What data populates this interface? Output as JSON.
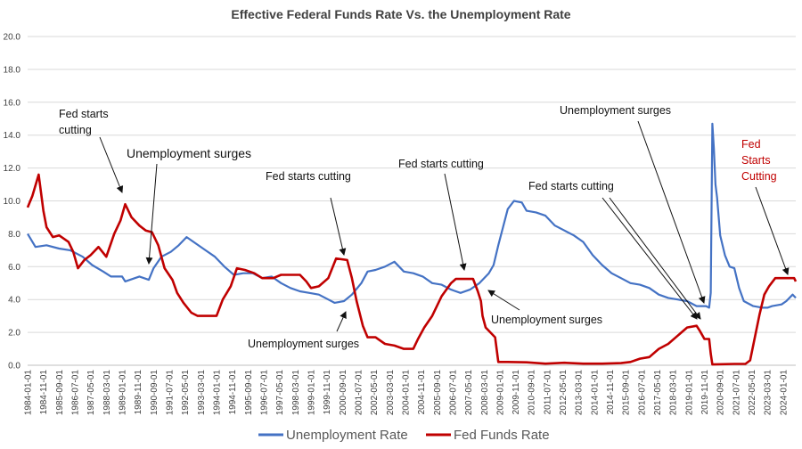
{
  "chart_data": {
    "type": "line",
    "title": "Effective Federal Funds Rate Vs. the Unemployment Rate",
    "ylim": [
      0,
      20
    ],
    "yticks": [
      "0.0",
      "2.0",
      "4.0",
      "6.0",
      "8.0",
      "10.0",
      "12.0",
      "14.0",
      "16.0",
      "18.0",
      "20.0"
    ],
    "xlim": [
      "1984-01-01",
      "2024-09-01"
    ],
    "xticks": [
      "1984-01-01",
      "1984-11-01",
      "1985-09-01",
      "1986-07-01",
      "1987-05-01",
      "1988-03-01",
      "1989-01-01",
      "1989-11-01",
      "1990-09-01",
      "1991-07-01",
      "1992-05-01",
      "1993-03-01",
      "1994-01-01",
      "1994-11-01",
      "1995-09-01",
      "1996-07-01",
      "1997-05-01",
      "1998-03-01",
      "1999-01-01",
      "1999-11-01",
      "2000-09-01",
      "2001-07-01",
      "2002-05-01",
      "2003-03-01",
      "2004-01-01",
      "2004-11-01",
      "2005-09-01",
      "2006-07-01",
      "2007-05-01",
      "2008-03-01",
      "2009-01-01",
      "2009-11-01",
      "2010-09-01",
      "2011-07-01",
      "2012-05-01",
      "2013-03-01",
      "2014-01-01",
      "2014-11-01",
      "2015-09-01",
      "2016-07-01",
      "2017-05-01",
      "2018-03-01",
      "2019-01-01",
      "2019-11-01",
      "2020-09-01",
      "2021-07-01",
      "2022-05-01",
      "2023-03-01",
      "2024-01-01"
    ],
    "grid": "horizontal",
    "legend_position": "bottom",
    "series": [
      {
        "name": "Unemployment Rate",
        "color": "#4472c4",
        "points": [
          [
            "1984-01-01",
            8.0
          ],
          [
            "1984-06-01",
            7.2
          ],
          [
            "1985-01-01",
            7.3
          ],
          [
            "1985-09-01",
            7.1
          ],
          [
            "1986-04-01",
            7.0
          ],
          [
            "1986-12-01",
            6.6
          ],
          [
            "1987-06-01",
            6.1
          ],
          [
            "1988-01-01",
            5.7
          ],
          [
            "1988-06-01",
            5.4
          ],
          [
            "1989-01-01",
            5.4
          ],
          [
            "1989-03-01",
            5.1
          ],
          [
            "1989-12-01",
            5.4
          ],
          [
            "1990-06-01",
            5.2
          ],
          [
            "1990-09-01",
            5.9
          ],
          [
            "1991-02-01",
            6.6
          ],
          [
            "1991-08-01",
            6.9
          ],
          [
            "1992-01-01",
            7.3
          ],
          [
            "1992-06-01",
            7.8
          ],
          [
            "1992-12-01",
            7.4
          ],
          [
            "1993-06-01",
            7.0
          ],
          [
            "1993-12-01",
            6.6
          ],
          [
            "1994-06-01",
            6.0
          ],
          [
            "1994-12-01",
            5.5
          ],
          [
            "1995-06-01",
            5.6
          ],
          [
            "1995-12-01",
            5.6
          ],
          [
            "1996-06-01",
            5.3
          ],
          [
            "1996-12-01",
            5.4
          ],
          [
            "1997-06-01",
            5.0
          ],
          [
            "1997-12-01",
            4.7
          ],
          [
            "1998-06-01",
            4.5
          ],
          [
            "1998-12-01",
            4.4
          ],
          [
            "1999-06-01",
            4.3
          ],
          [
            "1999-12-01",
            4.0
          ],
          [
            "2000-04-01",
            3.8
          ],
          [
            "2000-10-01",
            3.9
          ],
          [
            "2001-03-01",
            4.3
          ],
          [
            "2001-09-01",
            5.0
          ],
          [
            "2002-01-01",
            5.7
          ],
          [
            "2002-06-01",
            5.8
          ],
          [
            "2002-12-01",
            6.0
          ],
          [
            "2003-06-01",
            6.3
          ],
          [
            "2003-12-01",
            5.7
          ],
          [
            "2004-06-01",
            5.6
          ],
          [
            "2004-12-01",
            5.4
          ],
          [
            "2005-06-01",
            5.0
          ],
          [
            "2005-12-01",
            4.9
          ],
          [
            "2006-06-01",
            4.6
          ],
          [
            "2006-12-01",
            4.4
          ],
          [
            "2007-06-01",
            4.6
          ],
          [
            "2007-12-01",
            5.0
          ],
          [
            "2008-06-01",
            5.6
          ],
          [
            "2008-09-01",
            6.1
          ],
          [
            "2008-12-01",
            7.3
          ],
          [
            "2009-06-01",
            9.5
          ],
          [
            "2009-10-01",
            10.0
          ],
          [
            "2010-03-01",
            9.9
          ],
          [
            "2010-06-01",
            9.4
          ],
          [
            "2010-12-01",
            9.3
          ],
          [
            "2011-06-01",
            9.1
          ],
          [
            "2011-12-01",
            8.5
          ],
          [
            "2012-06-01",
            8.2
          ],
          [
            "2012-12-01",
            7.9
          ],
          [
            "2013-06-01",
            7.5
          ],
          [
            "2013-12-01",
            6.7
          ],
          [
            "2014-06-01",
            6.1
          ],
          [
            "2014-12-01",
            5.6
          ],
          [
            "2015-06-01",
            5.3
          ],
          [
            "2015-12-01",
            5.0
          ],
          [
            "2016-06-01",
            4.9
          ],
          [
            "2016-12-01",
            4.7
          ],
          [
            "2017-06-01",
            4.3
          ],
          [
            "2017-12-01",
            4.1
          ],
          [
            "2018-06-01",
            4.0
          ],
          [
            "2018-12-01",
            3.9
          ],
          [
            "2019-06-01",
            3.6
          ],
          [
            "2019-12-01",
            3.6
          ],
          [
            "2020-02-01",
            3.5
          ],
          [
            "2020-03-01",
            4.4
          ],
          [
            "2020-04-01",
            14.7
          ],
          [
            "2020-05-01",
            13.2
          ],
          [
            "2020-06-01",
            11.0
          ],
          [
            "2020-07-01",
            10.2
          ],
          [
            "2020-09-01",
            7.9
          ],
          [
            "2020-12-01",
            6.7
          ],
          [
            "2021-03-01",
            6.0
          ],
          [
            "2021-06-01",
            5.9
          ],
          [
            "2021-09-01",
            4.7
          ],
          [
            "2021-12-01",
            3.9
          ],
          [
            "2022-06-01",
            3.6
          ],
          [
            "2022-12-01",
            3.5
          ],
          [
            "2023-03-01",
            3.5
          ],
          [
            "2023-06-01",
            3.6
          ],
          [
            "2023-12-01",
            3.7
          ],
          [
            "2024-03-01",
            3.9
          ],
          [
            "2024-07-01",
            4.3
          ],
          [
            "2024-09-01",
            4.1
          ]
        ]
      },
      {
        "name": "Fed Funds Rate",
        "color": "#c00000",
        "points": [
          [
            "1984-01-01",
            9.6
          ],
          [
            "1984-04-01",
            10.3
          ],
          [
            "1984-08-01",
            11.6
          ],
          [
            "1984-11-01",
            9.4
          ],
          [
            "1985-01-01",
            8.4
          ],
          [
            "1985-05-01",
            7.8
          ],
          [
            "1985-09-01",
            7.9
          ],
          [
            "1986-03-01",
            7.5
          ],
          [
            "1986-06-01",
            6.9
          ],
          [
            "1986-09-01",
            5.9
          ],
          [
            "1987-01-01",
            6.4
          ],
          [
            "1987-05-01",
            6.7
          ],
          [
            "1987-10-01",
            7.2
          ],
          [
            "1988-03-01",
            6.6
          ],
          [
            "1988-08-01",
            8.0
          ],
          [
            "1988-12-01",
            8.8
          ],
          [
            "1989-03-01",
            9.8
          ],
          [
            "1989-07-01",
            9.0
          ],
          [
            "1989-12-01",
            8.5
          ],
          [
            "1990-04-01",
            8.2
          ],
          [
            "1990-08-01",
            8.1
          ],
          [
            "1990-12-01",
            7.3
          ],
          [
            "1991-04-01",
            5.9
          ],
          [
            "1991-09-01",
            5.2
          ],
          [
            "1991-12-01",
            4.4
          ],
          [
            "1992-04-01",
            3.8
          ],
          [
            "1992-09-01",
            3.2
          ],
          [
            "1993-01-01",
            3.0
          ],
          [
            "1993-08-01",
            3.0
          ],
          [
            "1994-01-01",
            3.0
          ],
          [
            "1994-05-01",
            4.0
          ],
          [
            "1994-10-01",
            4.8
          ],
          [
            "1995-02-01",
            5.9
          ],
          [
            "1995-07-01",
            5.8
          ],
          [
            "1996-01-01",
            5.6
          ],
          [
            "1996-06-01",
            5.3
          ],
          [
            "1997-01-01",
            5.3
          ],
          [
            "1997-06-01",
            5.5
          ],
          [
            "1998-01-01",
            5.5
          ],
          [
            "1998-06-01",
            5.5
          ],
          [
            "1998-10-01",
            5.1
          ],
          [
            "1999-01-01",
            4.7
          ],
          [
            "1999-06-01",
            4.8
          ],
          [
            "1999-12-01",
            5.3
          ],
          [
            "2000-05-01",
            6.5
          ],
          [
            "2000-12-01",
            6.4
          ],
          [
            "2001-03-01",
            5.3
          ],
          [
            "2001-06-01",
            3.9
          ],
          [
            "2001-10-01",
            2.4
          ],
          [
            "2002-01-01",
            1.7
          ],
          [
            "2002-06-01",
            1.7
          ],
          [
            "2002-12-01",
            1.3
          ],
          [
            "2003-06-01",
            1.2
          ],
          [
            "2003-12-01",
            1.0
          ],
          [
            "2004-06-01",
            1.0
          ],
          [
            "2004-09-01",
            1.6
          ],
          [
            "2005-01-01",
            2.3
          ],
          [
            "2005-06-01",
            3.0
          ],
          [
            "2005-12-01",
            4.2
          ],
          [
            "2006-06-01",
            5.0
          ],
          [
            "2006-09-01",
            5.25
          ],
          [
            "2007-08-01",
            5.25
          ],
          [
            "2007-11-01",
            4.5
          ],
          [
            "2008-01-01",
            3.9
          ],
          [
            "2008-02-01",
            3.0
          ],
          [
            "2008-04-01",
            2.3
          ],
          [
            "2008-10-01",
            1.7
          ],
          [
            "2008-12-01",
            0.2
          ],
          [
            "2009-06-01",
            0.2
          ],
          [
            "2010-06-01",
            0.18
          ],
          [
            "2011-06-01",
            0.1
          ],
          [
            "2012-06-01",
            0.15
          ],
          [
            "2013-06-01",
            0.1
          ],
          [
            "2014-06-01",
            0.1
          ],
          [
            "2015-06-01",
            0.13
          ],
          [
            "2015-12-01",
            0.2
          ],
          [
            "2016-06-01",
            0.4
          ],
          [
            "2016-12-01",
            0.5
          ],
          [
            "2017-06-01",
            1.0
          ],
          [
            "2017-12-01",
            1.3
          ],
          [
            "2018-06-01",
            1.8
          ],
          [
            "2018-12-01",
            2.3
          ],
          [
            "2019-06-01",
            2.4
          ],
          [
            "2019-08-01",
            2.1
          ],
          [
            "2019-11-01",
            1.6
          ],
          [
            "2020-02-01",
            1.6
          ],
          [
            "2020-03-01",
            0.7
          ],
          [
            "2020-04-01",
            0.05
          ],
          [
            "2021-06-01",
            0.08
          ],
          [
            "2022-01-01",
            0.08
          ],
          [
            "2022-04-01",
            0.3
          ],
          [
            "2022-07-01",
            1.7
          ],
          [
            "2022-10-01",
            3.1
          ],
          [
            "2023-01-01",
            4.3
          ],
          [
            "2023-04-01",
            4.8
          ],
          [
            "2023-08-01",
            5.3
          ],
          [
            "2024-08-01",
            5.3
          ],
          [
            "2024-09-01",
            5.1
          ]
        ]
      }
    ],
    "annotations": {
      "fed_cut_1": [
        "Fed starts",
        "cutting"
      ],
      "unemp_surge_1": "Unemployment surges",
      "fed_cut_2": "Fed starts cutting",
      "unemp_surge_2": "Unemployment surges",
      "fed_cut_3": "Fed starts cutting",
      "unemp_surge_3": "Unemployment surges",
      "fed_cut_4": "Fed starts cutting",
      "unemp_surge_4": "Unemployment surges",
      "fed_cut_5": [
        "Fed",
        "Starts",
        "Cutting"
      ]
    },
    "legend": {
      "unemployment": "Unemployment Rate",
      "fed_funds": "Fed Funds Rate"
    }
  }
}
